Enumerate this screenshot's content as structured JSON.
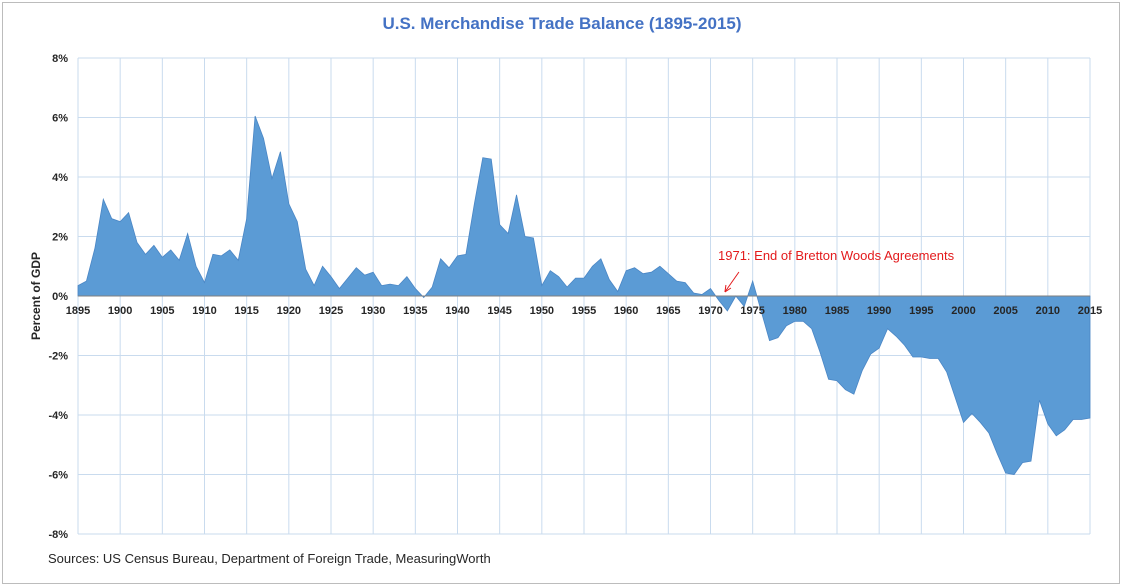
{
  "chart_data": {
    "type": "area",
    "title": "U.S. Merchandise Trade Balance (1895-2015)",
    "xlabel": "",
    "ylabel": "Percent of GDP",
    "xlim": [
      1895,
      2015
    ],
    "ylim": [
      -8,
      8
    ],
    "x_ticks": [
      "1895",
      "1900",
      "1905",
      "1910",
      "1915",
      "1920",
      "1925",
      "1930",
      "1935",
      "1940",
      "1945",
      "1950",
      "1955",
      "1960",
      "1965",
      "1970",
      "1975",
      "1980",
      "1985",
      "1990",
      "1995",
      "2000",
      "2005",
      "2010",
      "2015"
    ],
    "y_ticks": [
      "8%",
      "6%",
      "4%",
      "2%",
      "0%",
      "-2%",
      "-4%",
      "-6%",
      "-8%"
    ],
    "grid": true,
    "colors": {
      "fill": "#5b9bd5",
      "title": "#4472c4",
      "annotation": "#e31a1c",
      "grid": "#c9dbee"
    },
    "series": [
      {
        "x": [
          1895,
          1896,
          1897,
          1898,
          1899,
          1900,
          1901,
          1902,
          1903,
          1904,
          1905,
          1906,
          1907,
          1908,
          1909,
          1910,
          1911,
          1912,
          1913,
          1914,
          1915,
          1916,
          1917,
          1918,
          1919,
          1920,
          1921,
          1922,
          1923,
          1924,
          1925,
          1926,
          1927,
          1928,
          1929,
          1930,
          1931,
          1932,
          1933,
          1934,
          1935,
          1936,
          1937,
          1938,
          1939,
          1940,
          1941,
          1942,
          1943,
          1944,
          1945,
          1946,
          1947,
          1948,
          1949,
          1950,
          1951,
          1952,
          1953,
          1954,
          1955,
          1956,
          1957,
          1958,
          1959,
          1960,
          1961,
          1962,
          1963,
          1964,
          1965,
          1966,
          1967,
          1968,
          1969,
          1970,
          1971,
          1972,
          1973,
          1974,
          1975,
          1976,
          1977,
          1978,
          1979,
          1980,
          1981,
          1982,
          1983,
          1984,
          1985,
          1986,
          1987,
          1988,
          1989,
          1990,
          1991,
          1992,
          1993,
          1994,
          1995,
          1996,
          1997,
          1998,
          1999,
          2000,
          2001,
          2002,
          2003,
          2004,
          2005,
          2006,
          2007,
          2008,
          2009,
          2010,
          2011,
          2012,
          2013,
          2014,
          2015
        ],
        "values": [
          0.35,
          0.5,
          1.6,
          3.25,
          2.6,
          2.5,
          2.8,
          1.8,
          1.4,
          1.7,
          1.3,
          1.55,
          1.2,
          2.1,
          1.0,
          0.45,
          1.4,
          1.35,
          1.55,
          1.2,
          2.6,
          6.05,
          5.3,
          3.95,
          4.85,
          3.1,
          2.5,
          0.9,
          0.35,
          1.0,
          0.65,
          0.25,
          0.6,
          0.95,
          0.7,
          0.8,
          0.35,
          0.4,
          0.35,
          0.65,
          0.25,
          -0.05,
          0.3,
          1.25,
          0.95,
          1.35,
          1.4,
          3.1,
          4.65,
          4.6,
          2.4,
          2.1,
          3.4,
          2.0,
          1.95,
          0.35,
          0.85,
          0.65,
          0.3,
          0.6,
          0.6,
          1.0,
          1.25,
          0.55,
          0.15,
          0.85,
          0.95,
          0.75,
          0.8,
          1.0,
          0.75,
          0.5,
          0.45,
          0.1,
          0.05,
          0.25,
          -0.15,
          -0.5,
          0.0,
          -0.35,
          0.5,
          -0.5,
          -1.5,
          -1.4,
          -1.0,
          -0.85,
          -0.85,
          -1.1,
          -1.9,
          -2.8,
          -2.85,
          -3.15,
          -3.3,
          -2.5,
          -1.95,
          -1.75,
          -1.1,
          -1.35,
          -1.65,
          -2.05,
          -2.05,
          -2.1,
          -2.1,
          -2.55,
          -3.4,
          -4.25,
          -3.95,
          -4.25,
          -4.6,
          -5.3,
          -5.95,
          -6.0,
          -5.6,
          -5.55,
          -3.5,
          -4.3,
          -4.7,
          -4.5,
          -4.15,
          -4.15,
          -4.1
        ]
      }
    ],
    "annotations": [
      {
        "text": "1971: End of Bretton Woods Agreements",
        "x": 1971,
        "y": 0
      }
    ],
    "source": "Sources: US Census Bureau, Department of Foreign Trade, MeasuringWorth"
  }
}
